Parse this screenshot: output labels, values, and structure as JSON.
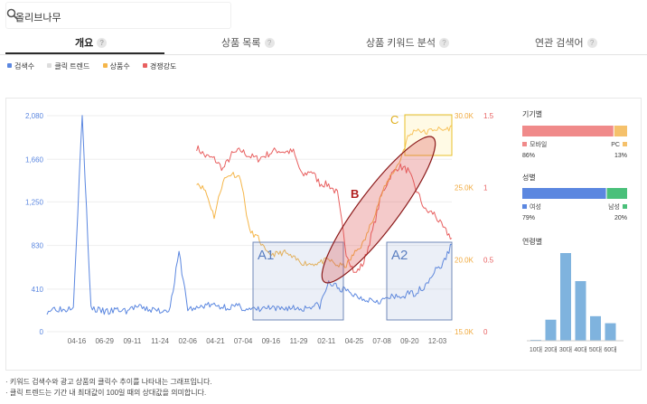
{
  "search": {
    "query": "올리브나무",
    "icon": "search-icon"
  },
  "tabs": [
    {
      "label": "개요",
      "active": true
    },
    {
      "label": "상품 목록",
      "active": false
    },
    {
      "label": "상품 키워드 분석",
      "active": false
    },
    {
      "label": "연관 검색어",
      "active": false
    }
  ],
  "tab_help": "?",
  "legend": [
    {
      "label": "검색수",
      "color": "#5b87e0"
    },
    {
      "label": "클릭 트렌드",
      "color": "#dddddd"
    },
    {
      "label": "상품수",
      "color": "#f5b64a"
    },
    {
      "label": "경쟁강도",
      "color": "#e86060"
    }
  ],
  "chart_data": {
    "type": "line",
    "x_ticks": [
      "04-16",
      "06-29",
      "09-11",
      "11-24",
      "02-06",
      "04-21",
      "07-04",
      "09-16",
      "11-29",
      "02-11",
      "04-25",
      "07-08",
      "09-20",
      "12-03"
    ],
    "y_left": {
      "ticks": [
        "0",
        "410",
        "830",
        "1,250",
        "1,660",
        "2,080"
      ],
      "range": [
        0,
        2080
      ]
    },
    "y_right_products": {
      "ticks": [
        "15.0K",
        "20.0K",
        "25.0K",
        "30.0K"
      ],
      "range": [
        15000,
        30000
      ]
    },
    "y_right_competition": {
      "ticks": [
        "0",
        "0.5",
        "1",
        "1.5"
      ],
      "range": [
        0,
        1.5
      ]
    },
    "series": [
      {
        "name": "검색수",
        "color": "#5b87e0",
        "values": [
          200,
          230,
          210,
          260,
          2080,
          230,
          200,
          190,
          210,
          200,
          240,
          220,
          210,
          200,
          230,
          760,
          220,
          220,
          260,
          250,
          240,
          240,
          240,
          210,
          210,
          230,
          210,
          230,
          230,
          220,
          250,
          250,
          470,
          430,
          390,
          350,
          320,
          310,
          300,
          330,
          330,
          360,
          380,
          450,
          580,
          650,
          850
        ]
      },
      {
        "name": "상품수",
        "color": "#f5b64a",
        "values": [
          null,
          null,
          null,
          null,
          null,
          null,
          null,
          null,
          null,
          null,
          null,
          null,
          null,
          null,
          null,
          null,
          null,
          25400,
          24800,
          23000,
          25500,
          26000,
          25700,
          22000,
          21500,
          20400,
          20400,
          20500,
          20100,
          19800,
          19700,
          19800,
          20000,
          19600,
          19600,
          20500,
          21200,
          22800,
          24500,
          25800,
          26700,
          28500,
          29100,
          28800,
          29100,
          29000,
          29200
        ]
      },
      {
        "name": "경쟁강도",
        "color": "#e86060",
        "values": [
          null,
          null,
          null,
          null,
          null,
          null,
          null,
          null,
          null,
          null,
          null,
          null,
          null,
          null,
          null,
          null,
          null,
          1.28,
          1.22,
          1.2,
          1.13,
          1.23,
          1.26,
          1.22,
          1.2,
          1.23,
          1.26,
          1.25,
          1.25,
          1.08,
          1.12,
          1.03,
          1.02,
          0.96,
          0.55,
          0.4,
          0.48,
          0.7,
          0.95,
          1.08,
          1.15,
          1.12,
          0.98,
          0.84,
          0.82,
          0.72,
          0.65
        ]
      }
    ],
    "annotations": [
      "A1",
      "A2",
      "B",
      "C"
    ]
  },
  "sidebar": {
    "device": {
      "title": "기기별",
      "mobile_label": "모바일",
      "pc_label": "PC",
      "mobile_pct": "86%",
      "pc_pct": "13%",
      "mobile": 86,
      "pc": 13,
      "mobile_color": "#f08a8a",
      "pc_color": "#f5c16b"
    },
    "gender": {
      "title": "성별",
      "female_label": "여성",
      "male_label": "남성",
      "female_pct": "79%",
      "male_pct": "20%",
      "female": 79,
      "male": 20,
      "female_color": "#5b87e0",
      "male_color": "#4ac07a"
    },
    "age": {
      "title": "연령별",
      "categories": [
        "10대",
        "20대",
        "30대",
        "40대",
        "50대",
        "60대"
      ],
      "values": [
        1,
        24,
        100,
        68,
        28,
        20
      ],
      "color": "#7fb3de"
    }
  },
  "notes": [
    "· 키워드 검색수와 광고 상품의 클릭수 추이를 나타내는 그래프입니다.",
    "· 클릭 트렌드는 기간 내 최대값이 100일 때의 상대값을 의미합니다."
  ]
}
